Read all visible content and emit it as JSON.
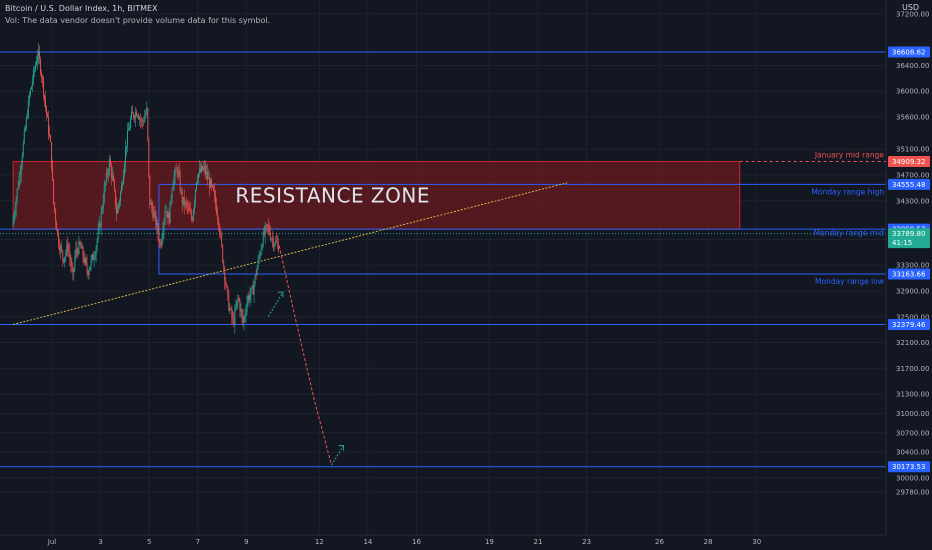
{
  "header": {
    "title": "Bitcoin / U.S. Dollar Index, 1h, BITMEX",
    "vol_note": "Vol: The data vendor doesn't provide volume data for this symbol.",
    "currency": "USD"
  },
  "colors": {
    "background": "#131722",
    "up_candle": "#26a69a",
    "down_candle": "#ef5350",
    "level_blue": "#2962ff",
    "zone_fill": "#6b1a1f",
    "zone_border": "#c62828",
    "trendline": "#d4b84a",
    "projection": "#ef5350",
    "last_price": "#22ab94"
  },
  "chart_data": {
    "type": "candlestick",
    "symbol": "Bitcoin / U.S. Dollar Index",
    "interval": "1h",
    "exchange": "BITMEX",
    "ylim": [
      29500,
      37300
    ],
    "y_ticks": [
      37200,
      36400,
      36000,
      35600,
      35100,
      34700,
      34300,
      33700,
      33300,
      32900,
      32500,
      32100,
      31700,
      31300,
      31000,
      30700,
      30400,
      30000,
      29780
    ],
    "x_ticks": [
      {
        "label": "Jul",
        "day": 1
      },
      {
        "label": "3",
        "day": 3
      },
      {
        "label": "5",
        "day": 5
      },
      {
        "label": "7",
        "day": 7
      },
      {
        "label": "9",
        "day": 9
      },
      {
        "label": "12",
        "day": 12
      },
      {
        "label": "14",
        "day": 14
      },
      {
        "label": "16",
        "day": 16
      },
      {
        "label": "19",
        "day": 19
      },
      {
        "label": "21",
        "day": 21
      },
      {
        "label": "23",
        "day": 23
      },
      {
        "label": "26",
        "day": 26
      },
      {
        "label": "28",
        "day": 28
      },
      {
        "label": "30",
        "day": 30
      }
    ],
    "price_path": [
      [
        -0.6,
        33900
      ],
      [
        -0.3,
        34700
      ],
      [
        -0.1,
        35300
      ],
      [
        0.1,
        35900
      ],
      [
        0.3,
        36300
      ],
      [
        0.45,
        36600
      ],
      [
        0.6,
        36300
      ],
      [
        0.8,
        35700
      ],
      [
        1.0,
        35100
      ],
      [
        1.1,
        34300
      ],
      [
        1.3,
        33700
      ],
      [
        1.5,
        33400
      ],
      [
        1.7,
        33600
      ],
      [
        1.9,
        33100
      ],
      [
        2.0,
        33500
      ],
      [
        2.2,
        33600
      ],
      [
        2.5,
        33200
      ],
      [
        2.8,
        33500
      ],
      [
        3.0,
        33900
      ],
      [
        3.2,
        34500
      ],
      [
        3.4,
        34900
      ],
      [
        3.55,
        34600
      ],
      [
        3.7,
        34100
      ],
      [
        3.9,
        34500
      ],
      [
        4.1,
        35200
      ],
      [
        4.3,
        35600
      ],
      [
        4.55,
        35700
      ],
      [
        4.75,
        35500
      ],
      [
        4.95,
        35700
      ],
      [
        5.05,
        34300
      ],
      [
        5.3,
        34000
      ],
      [
        5.5,
        33600
      ],
      [
        5.7,
        34200
      ],
      [
        5.85,
        34000
      ],
      [
        6.0,
        34600
      ],
      [
        6.2,
        34800
      ],
      [
        6.4,
        34300
      ],
      [
        6.6,
        34200
      ],
      [
        6.8,
        34000
      ],
      [
        7.0,
        34700
      ],
      [
        7.3,
        34800
      ],
      [
        7.5,
        34600
      ],
      [
        7.7,
        34400
      ],
      [
        7.9,
        34000
      ],
      [
        8.1,
        33300
      ],
      [
        8.3,
        32700
      ],
      [
        8.5,
        32400
      ],
      [
        8.7,
        32800
      ],
      [
        8.9,
        32400
      ],
      [
        9.1,
        32800
      ],
      [
        9.3,
        32900
      ],
      [
        9.5,
        33300
      ],
      [
        9.7,
        33700
      ],
      [
        9.9,
        33900
      ],
      [
        10.1,
        33700
      ],
      [
        10.35,
        33600
      ]
    ],
    "horizontal_levels": [
      {
        "price": 36608.62,
        "label": ""
      },
      {
        "price": 34555.48,
        "label": "Monday range high"
      },
      {
        "price": 33859.57,
        "label": ""
      },
      {
        "price": 33163.66,
        "label": "Monday range low"
      },
      {
        "price": 32379.46,
        "label": ""
      },
      {
        "price": 30173.53,
        "label": ""
      }
    ],
    "level_annotations": [
      {
        "text": "Monday range mid",
        "price": 33700
      },
      {
        "text": "January mid range",
        "price": 34909.32
      }
    ],
    "price_tags": [
      {
        "price": 36608.62,
        "text": "36608.62",
        "kind": "level"
      },
      {
        "price": 34909.32,
        "text": "34909.32",
        "kind": "red"
      },
      {
        "price": 34555.48,
        "text": "34555.48",
        "kind": "level"
      },
      {
        "price": 33859.57,
        "text": "33859.57",
        "kind": "level"
      },
      {
        "price": 33163.66,
        "text": "33163.66",
        "kind": "level"
      },
      {
        "price": 32379.46,
        "text": "32379.46",
        "kind": "level"
      },
      {
        "price": 30173.53,
        "text": "30173.53",
        "kind": "level"
      }
    ],
    "last_price": {
      "price": 33789.8,
      "text": "33789.80",
      "countdown": "41:15"
    },
    "resistance_zone": {
      "label": "RESISTANCE ZONE",
      "top": 34909.32,
      "bottom": 33859.57,
      "day_start": -0.6,
      "day_end": 29.3
    },
    "monday_box": {
      "top": 34555.48,
      "bottom": 33163.66,
      "day_start": 5.4,
      "day_end": 8.8
    },
    "mid_range_dashed": {
      "price": 34909.32,
      "day_start": 29.3
    },
    "trendline": {
      "p1": [
        -0.6,
        32380
      ],
      "p2": [
        22.2,
        34580
      ]
    },
    "projection": [
      [
        10.35,
        33600
      ],
      [
        11.0,
        32500
      ],
      [
        11.8,
        31200
      ],
      [
        12.5,
        30200
      ]
    ],
    "projection_bounces": [
      {
        "from": [
          9.9,
          32500
        ],
        "to": [
          10.5,
          32880
        ]
      },
      {
        "from": [
          12.5,
          30200
        ],
        "to": [
          13.0,
          30500
        ]
      }
    ]
  }
}
